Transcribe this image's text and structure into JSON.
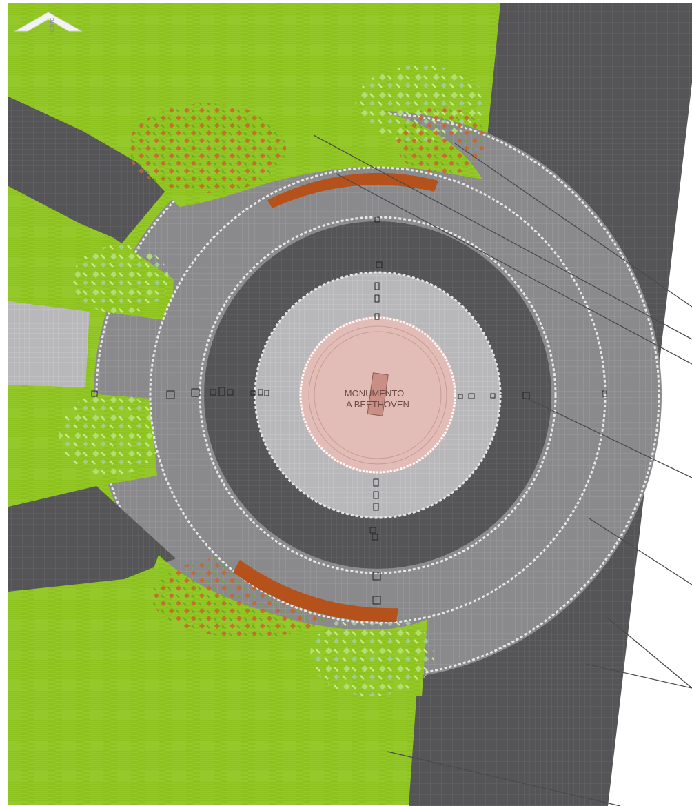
{
  "plan": {
    "monument_label_line1": "MONUMENTO",
    "monument_label_line2": "A BEETHOVEN",
    "north_label": "NORTE"
  },
  "colors": {
    "grass": "#8dc21f",
    "dark_paving": "#555557",
    "mid_paving": "#8a8a8c",
    "light_paving": "#b8b8ba",
    "border_white": "#e8e8e8",
    "monument_base": "#e2bcb6",
    "bench": "#b5521b",
    "shrub_red": "#c8642a",
    "shrub_light": "#a8d860",
    "leader_line": "#4a4a4a"
  }
}
